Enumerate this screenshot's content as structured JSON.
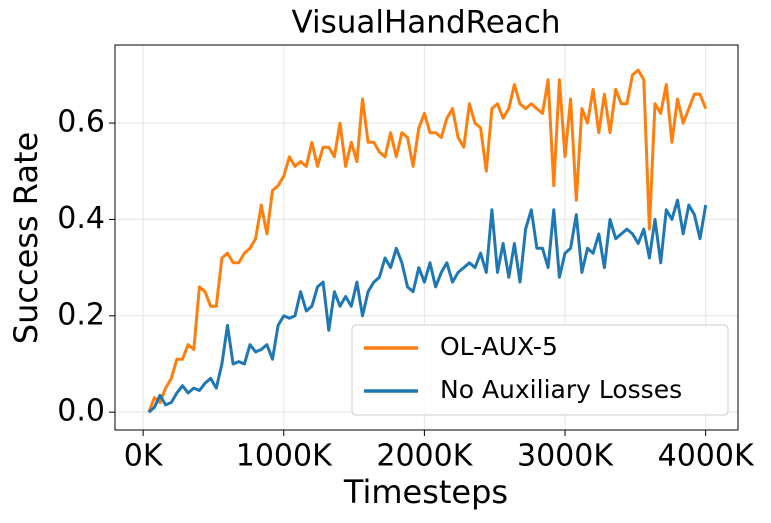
{
  "chart_data": {
    "type": "line",
    "title": "VisualHandReach",
    "x_label": "Timesteps",
    "y_label": "Success Rate",
    "x": [
      40000,
      80000,
      120000,
      160000,
      200000,
      240000,
      280000,
      320000,
      360000,
      400000,
      440000,
      480000,
      520000,
      560000,
      600000,
      640000,
      680000,
      720000,
      760000,
      800000,
      840000,
      880000,
      920000,
      960000,
      1000000,
      1040000,
      1080000,
      1120000,
      1160000,
      1200000,
      1240000,
      1280000,
      1320000,
      1360000,
      1400000,
      1440000,
      1480000,
      1520000,
      1560000,
      1600000,
      1640000,
      1680000,
      1720000,
      1760000,
      1800000,
      1840000,
      1880000,
      1920000,
      1960000,
      2000000,
      2040000,
      2080000,
      2120000,
      2160000,
      2200000,
      2240000,
      2280000,
      2320000,
      2360000,
      2400000,
      2440000,
      2480000,
      2520000,
      2560000,
      2600000,
      2640000,
      2680000,
      2720000,
      2760000,
      2800000,
      2840000,
      2880000,
      2920000,
      2960000,
      3000000,
      3040000,
      3080000,
      3120000,
      3160000,
      3200000,
      3240000,
      3280000,
      3320000,
      3360000,
      3400000,
      3440000,
      3480000,
      3520000,
      3560000,
      3600000,
      3640000,
      3680000,
      3720000,
      3760000,
      3800000,
      3840000,
      3880000,
      3920000,
      3960000,
      4000000
    ],
    "series": [
      {
        "name": "OL-AUX-5",
        "color": "#ff7f0e",
        "values": [
          0.0,
          0.03,
          0.02,
          0.05,
          0.07,
          0.11,
          0.11,
          0.14,
          0.13,
          0.26,
          0.25,
          0.22,
          0.22,
          0.32,
          0.33,
          0.31,
          0.31,
          0.33,
          0.34,
          0.36,
          0.43,
          0.37,
          0.46,
          0.47,
          0.49,
          0.53,
          0.51,
          0.52,
          0.51,
          0.56,
          0.51,
          0.55,
          0.55,
          0.53,
          0.6,
          0.51,
          0.56,
          0.52,
          0.65,
          0.56,
          0.56,
          0.54,
          0.53,
          0.58,
          0.53,
          0.58,
          0.57,
          0.51,
          0.59,
          0.62,
          0.58,
          0.58,
          0.57,
          0.61,
          0.63,
          0.57,
          0.55,
          0.64,
          0.6,
          0.59,
          0.5,
          0.63,
          0.64,
          0.61,
          0.63,
          0.68,
          0.64,
          0.63,
          0.64,
          0.63,
          0.62,
          0.69,
          0.47,
          0.69,
          0.53,
          0.65,
          0.44,
          0.63,
          0.6,
          0.67,
          0.58,
          0.66,
          0.58,
          0.67,
          0.64,
          0.64,
          0.7,
          0.71,
          0.69,
          0.38,
          0.64,
          0.62,
          0.68,
          0.56,
          0.65,
          0.6,
          0.63,
          0.66,
          0.66,
          0.63
        ]
      },
      {
        "name": "No Auxiliary Losses",
        "color": "#1f77b4",
        "values": [
          0.0,
          0.01,
          0.035,
          0.015,
          0.02,
          0.04,
          0.055,
          0.04,
          0.05,
          0.045,
          0.06,
          0.07,
          0.05,
          0.1,
          0.18,
          0.1,
          0.105,
          0.1,
          0.14,
          0.125,
          0.13,
          0.14,
          0.11,
          0.18,
          0.2,
          0.195,
          0.2,
          0.25,
          0.21,
          0.22,
          0.26,
          0.27,
          0.17,
          0.25,
          0.22,
          0.24,
          0.22,
          0.27,
          0.2,
          0.25,
          0.27,
          0.28,
          0.32,
          0.3,
          0.34,
          0.31,
          0.26,
          0.25,
          0.3,
          0.27,
          0.31,
          0.26,
          0.29,
          0.31,
          0.27,
          0.29,
          0.3,
          0.31,
          0.3,
          0.33,
          0.29,
          0.42,
          0.29,
          0.35,
          0.28,
          0.35,
          0.27,
          0.38,
          0.42,
          0.34,
          0.34,
          0.3,
          0.42,
          0.28,
          0.33,
          0.34,
          0.41,
          0.29,
          0.34,
          0.33,
          0.37,
          0.3,
          0.4,
          0.36,
          0.37,
          0.38,
          0.37,
          0.35,
          0.38,
          0.32,
          0.4,
          0.31,
          0.42,
          0.4,
          0.44,
          0.37,
          0.43,
          0.41,
          0.36,
          0.43
        ]
      }
    ],
    "xlim": [
      -200000,
      4230000
    ],
    "xticks": [
      {
        "value": 0,
        "label": "0K"
      },
      {
        "value": 1000000,
        "label": "1000K"
      },
      {
        "value": 2000000,
        "label": "2000K"
      },
      {
        "value": 3000000,
        "label": "3000K"
      },
      {
        "value": 4000000,
        "label": "4000K"
      }
    ],
    "ylim": [
      -0.037,
      0.762
    ],
    "yticks": [
      {
        "value": 0,
        "label": "0.0"
      },
      {
        "value": 0.2,
        "label": "0.2"
      },
      {
        "value": 0.4,
        "label": "0.4"
      },
      {
        "value": 0.6,
        "label": "0.6"
      }
    ],
    "grid": true,
    "legend": "lower right"
  }
}
